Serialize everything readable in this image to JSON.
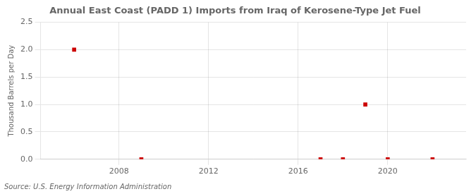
{
  "chart_data": {
    "type": "scatter",
    "title": "Annual East Coast (PADD 1) Imports from Iraq of Kerosene-Type Jet Fuel",
    "ylabel": "Thousand Barrels per Day",
    "source": "Source: U.S. Energy Information Administration",
    "x": [
      2006,
      2009,
      2017,
      2018,
      2019,
      2020,
      2022
    ],
    "values": [
      2.0,
      0.0,
      0.0,
      0.0,
      1.0,
      0.0,
      0.0
    ],
    "color": "#cc0000",
    "marker": "square",
    "xlim": [
      2004.5,
      2023.5
    ],
    "xticks": [
      2008,
      2012,
      2016,
      2020
    ],
    "ylim": [
      0.0,
      2.5
    ],
    "yticks": [
      {
        "value": 0.0,
        "label": "0.0"
      },
      0.5,
      {
        "value": 1.0,
        "label": "1.0"
      },
      1.5,
      {
        "value": 2.0,
        "label": "2.0"
      },
      2.5
    ],
    "grid": true
  }
}
